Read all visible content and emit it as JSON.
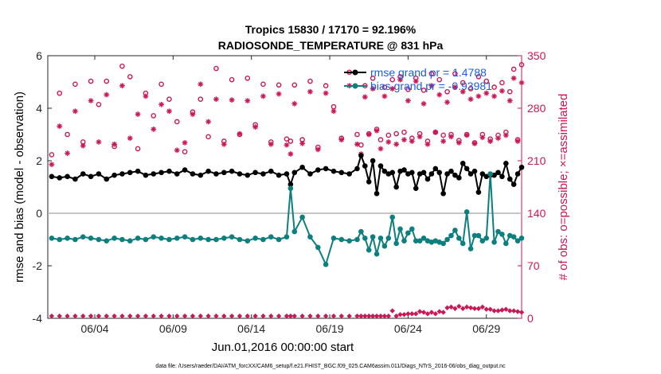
{
  "colors": {
    "rmse": "#000000",
    "bias": "#0d7f7f",
    "obs": "#cc1655",
    "legend_text": "#1a5ce6",
    "zero_line": "#b3b3b3"
  },
  "chart_data": {
    "type": "line",
    "title": "Tropics 15830 / 17170 = 92.196%",
    "subtitle": "RADIOSONDE_TEMPERATURE @ 831 hPa",
    "xlabel": "Jun.01,2016 00:00:00 start",
    "ylabel_left": "rmse and bias (model - observation)",
    "ylabel_right": "# of obs: o=possible; ×=assimilated",
    "footnote": "data file: /Users/raeder/DAI/ATM_forcXX/CAM6_setup/f.e21.FHIST_BGC.f09_025.CAM6assim.011/Diags_NTrS_2016-06/obs_diag_output.nc",
    "xlim": [
      0.5,
      30.75
    ],
    "x_ticks": [
      3.5,
      8.5,
      13.5,
      18.5,
      23.5,
      28.5
    ],
    "x_tick_labels": [
      "06/04",
      "06/09",
      "06/14",
      "06/19",
      "06/24",
      "06/29"
    ],
    "ylim_left": [
      -4,
      6
    ],
    "y_ticks_left": [
      -4,
      -2,
      0,
      2,
      4,
      6
    ],
    "y_tick_labels_left": [
      "-4",
      "-2",
      "0",
      "2",
      "4",
      "6"
    ],
    "ylim_right": [
      0,
      350
    ],
    "y_ticks_right": [
      0,
      70,
      140,
      210,
      280,
      350
    ],
    "y_tick_labels_right": [
      "0",
      "70",
      "140",
      "210",
      "280",
      "350"
    ],
    "legend": {
      "placement": "top-right",
      "entries": [
        "rmse grand pr = 1.4788",
        "bias grand pr = -0.93981"
      ]
    },
    "series": [
      {
        "name": "rmse",
        "axis": "left",
        "x": [
          0.75,
          1.25,
          1.75,
          2.25,
          2.75,
          3.25,
          3.75,
          4.25,
          4.75,
          5.25,
          5.75,
          6.25,
          6.75,
          7.25,
          7.75,
          8.25,
          8.75,
          9.25,
          9.75,
          10.25,
          10.75,
          11.25,
          11.75,
          12.25,
          12.75,
          13.25,
          13.75,
          14.25,
          14.75,
          15.25,
          15.75,
          16.0,
          16.25,
          16.75,
          17.25,
          17.75,
          18.25,
          18.75,
          19.25,
          19.75,
          20.25,
          20.5,
          20.75,
          21.0,
          21.25,
          21.5,
          21.75,
          22.0,
          22.25,
          22.5,
          22.75,
          23.0,
          23.25,
          23.5,
          23.75,
          24.0,
          24.25,
          24.5,
          24.75,
          25.0,
          25.25,
          25.5,
          25.75,
          26.0,
          26.25,
          26.5,
          26.75,
          27.0,
          27.25,
          27.5,
          27.75,
          28.0,
          28.25,
          28.5,
          28.75,
          29.0,
          29.25,
          29.5,
          29.75,
          30.0,
          30.25,
          30.5,
          30.75
        ],
        "values": [
          1.4,
          1.35,
          1.4,
          1.3,
          1.5,
          1.4,
          1.5,
          1.3,
          1.45,
          1.5,
          1.55,
          1.6,
          1.45,
          1.5,
          1.55,
          1.6,
          1.5,
          1.65,
          1.5,
          1.45,
          1.6,
          1.5,
          1.55,
          1.6,
          1.5,
          1.45,
          1.55,
          1.5,
          1.6,
          1.45,
          1.5,
          1.1,
          1.55,
          1.75,
          1.5,
          1.65,
          1.7,
          1.6,
          1.55,
          1.5,
          1.7,
          2.2,
          1.8,
          1.2,
          2.0,
          0.75,
          1.8,
          1.6,
          1.5,
          1.55,
          1.0,
          1.6,
          1.65,
          1.5,
          1.55,
          0.95,
          1.5,
          1.55,
          1.3,
          1.5,
          1.7,
          1.55,
          0.75,
          1.5,
          1.6,
          1.45,
          1.35,
          1.9,
          1.7,
          1.5,
          1.6,
          0.8,
          1.5,
          1.4,
          1.45,
          1.45,
          1.55,
          1.4,
          1.9,
          1.3,
          1.1,
          1.5,
          1.75
        ]
      },
      {
        "name": "bias",
        "axis": "left",
        "x": [
          0.75,
          1.25,
          1.75,
          2.25,
          2.75,
          3.25,
          3.75,
          4.25,
          4.75,
          5.25,
          5.75,
          6.25,
          6.75,
          7.25,
          7.75,
          8.25,
          8.75,
          9.25,
          9.75,
          10.25,
          10.75,
          11.25,
          11.75,
          12.25,
          12.75,
          13.25,
          13.75,
          14.25,
          14.75,
          15.25,
          15.75,
          16.0,
          16.25,
          16.75,
          17.25,
          17.75,
          18.25,
          18.75,
          19.25,
          19.75,
          20.25,
          20.5,
          20.75,
          21.0,
          21.25,
          21.5,
          21.75,
          22.0,
          22.25,
          22.5,
          22.75,
          23.0,
          23.25,
          23.5,
          23.75,
          24.0,
          24.25,
          24.5,
          24.75,
          25.0,
          25.25,
          25.5,
          25.75,
          26.0,
          26.25,
          26.5,
          26.75,
          27.0,
          27.25,
          27.5,
          27.75,
          28.0,
          28.25,
          28.5,
          28.75,
          29.0,
          29.25,
          29.5,
          29.75,
          30.0,
          30.25,
          30.5,
          30.75
        ],
        "values": [
          -0.95,
          -1.0,
          -0.95,
          -1.0,
          -0.9,
          -0.95,
          -1.0,
          -1.05,
          -0.95,
          -1.0,
          -1.05,
          -0.95,
          -1.0,
          -0.9,
          -0.95,
          -1.0,
          -0.95,
          -0.9,
          -1.0,
          -0.95,
          -1.0,
          -1.0,
          -0.95,
          -0.9,
          -1.0,
          -1.05,
          -0.95,
          -1.0,
          -0.9,
          -1.0,
          -0.9,
          0.95,
          -0.7,
          -0.15,
          -0.9,
          -1.3,
          -1.95,
          -0.95,
          -1.0,
          -1.05,
          -1.0,
          -0.7,
          -0.95,
          -1.4,
          -0.9,
          -1.55,
          -0.95,
          -1.25,
          -0.95,
          -0.15,
          -1.15,
          -0.6,
          -1.05,
          -0.75,
          -0.6,
          -1.05,
          -1.05,
          -0.95,
          -1.05,
          -1.1,
          -1.05,
          -1.1,
          -1.15,
          -1.0,
          -0.85,
          -0.65,
          -0.95,
          -1.15,
          0.05,
          -1.35,
          -0.85,
          -0.85,
          -1.05,
          -0.95,
          1.5,
          -1.1,
          -0.7,
          -0.8,
          -1.15,
          -0.85,
          -0.9,
          -1.05,
          -0.95
        ]
      },
      {
        "name": "obs possible",
        "axis": "right",
        "x": [
          0.75,
          1.25,
          1.75,
          2.25,
          2.75,
          3.25,
          3.75,
          4.25,
          4.75,
          5.25,
          5.75,
          6.25,
          6.75,
          7.25,
          7.75,
          8.25,
          8.75,
          9.25,
          9.75,
          10.25,
          10.75,
          11.25,
          11.75,
          12.25,
          12.75,
          13.25,
          13.75,
          14.25,
          14.75,
          15.25,
          15.75,
          16.0,
          16.25,
          16.75,
          17.25,
          17.75,
          18.25,
          18.75,
          19.25,
          19.75,
          20.25,
          20.5,
          20.75,
          21.0,
          21.25,
          21.5,
          21.75,
          22.0,
          22.25,
          22.5,
          22.75,
          23.0,
          23.25,
          23.5,
          23.75,
          24.0,
          24.25,
          24.5,
          24.75,
          25.0,
          25.25,
          25.5,
          25.75,
          26.0,
          26.25,
          26.5,
          26.75,
          27.0,
          27.25,
          27.5,
          27.75,
          28.0,
          28.25,
          28.5,
          28.75,
          29.0,
          29.25,
          29.5,
          29.75,
          30.0,
          30.25,
          30.5,
          30.75
        ],
        "values": [
          218,
          300,
          245,
          312,
          235,
          316,
          285,
          316,
          229,
          336,
          322,
          226,
          300,
          270,
          312,
          292,
          262,
          222,
          275,
          292,
          242,
          333,
          236,
          318,
          245,
          320,
          258,
          312,
          235,
          311,
          239,
          236,
          311,
          238,
          316,
          228,
          310,
          282,
          240,
          328,
          245,
          231,
          310,
          246,
          320,
          252,
          238,
          308,
          244,
          318,
          246,
          322,
          248,
          305,
          240,
          320,
          246,
          304,
          236,
          326,
          248,
          318,
          244,
          302,
          245,
          326,
          237,
          314,
          245,
          306,
          234,
          322,
          245,
          316,
          239,
          308,
          244,
          314,
          248,
          302,
          332,
          238,
          338
        ]
      },
      {
        "name": "obs assimilated",
        "axis": "right",
        "x": [
          0.75,
          1.25,
          1.75,
          2.25,
          2.75,
          3.25,
          3.75,
          4.25,
          4.75,
          5.25,
          5.75,
          6.25,
          6.75,
          7.25,
          7.75,
          8.25,
          8.75,
          9.25,
          9.75,
          10.25,
          10.75,
          11.25,
          11.75,
          12.25,
          12.75,
          13.25,
          13.75,
          14.25,
          14.75,
          15.25,
          15.75,
          16.0,
          16.25,
          16.75,
          17.25,
          17.75,
          18.25,
          18.75,
          19.25,
          19.75,
          20.25,
          20.5,
          20.75,
          21.0,
          21.25,
          21.5,
          21.75,
          22.0,
          22.25,
          22.5,
          22.75,
          23.0,
          23.25,
          23.5,
          23.75,
          24.0,
          24.25,
          24.5,
          24.75,
          25.0,
          25.25,
          25.5,
          25.75,
          26.0,
          26.25,
          26.5,
          26.75,
          27.0,
          27.25,
          27.5,
          27.75,
          28.0,
          28.25,
          28.5,
          28.75,
          29.0,
          29.25,
          29.5,
          29.75,
          30.0,
          30.25,
          30.5,
          30.75
        ],
        "values": [
          205,
          256,
          220,
          276,
          230,
          290,
          235,
          298,
          232,
          310,
          240,
          272,
          296,
          252,
          285,
          276,
          224,
          234,
          272,
          312,
          262,
          292,
          232,
          291,
          246,
          290,
          255,
          296,
          232,
          299,
          231,
          219,
          286,
          233,
          302,
          225,
          300,
          276,
          238,
          310,
          232,
          219,
          295,
          245,
          306,
          250,
          226,
          296,
          235,
          306,
          232,
          318,
          238,
          290,
          236,
          316,
          242,
          286,
          232,
          310,
          248,
          298,
          236,
          288,
          242,
          308,
          234,
          302,
          244,
          292,
          233,
          296,
          241,
          300,
          236,
          296,
          240,
          303,
          244,
          290,
          320,
          236,
          314
        ]
      }
    ]
  }
}
